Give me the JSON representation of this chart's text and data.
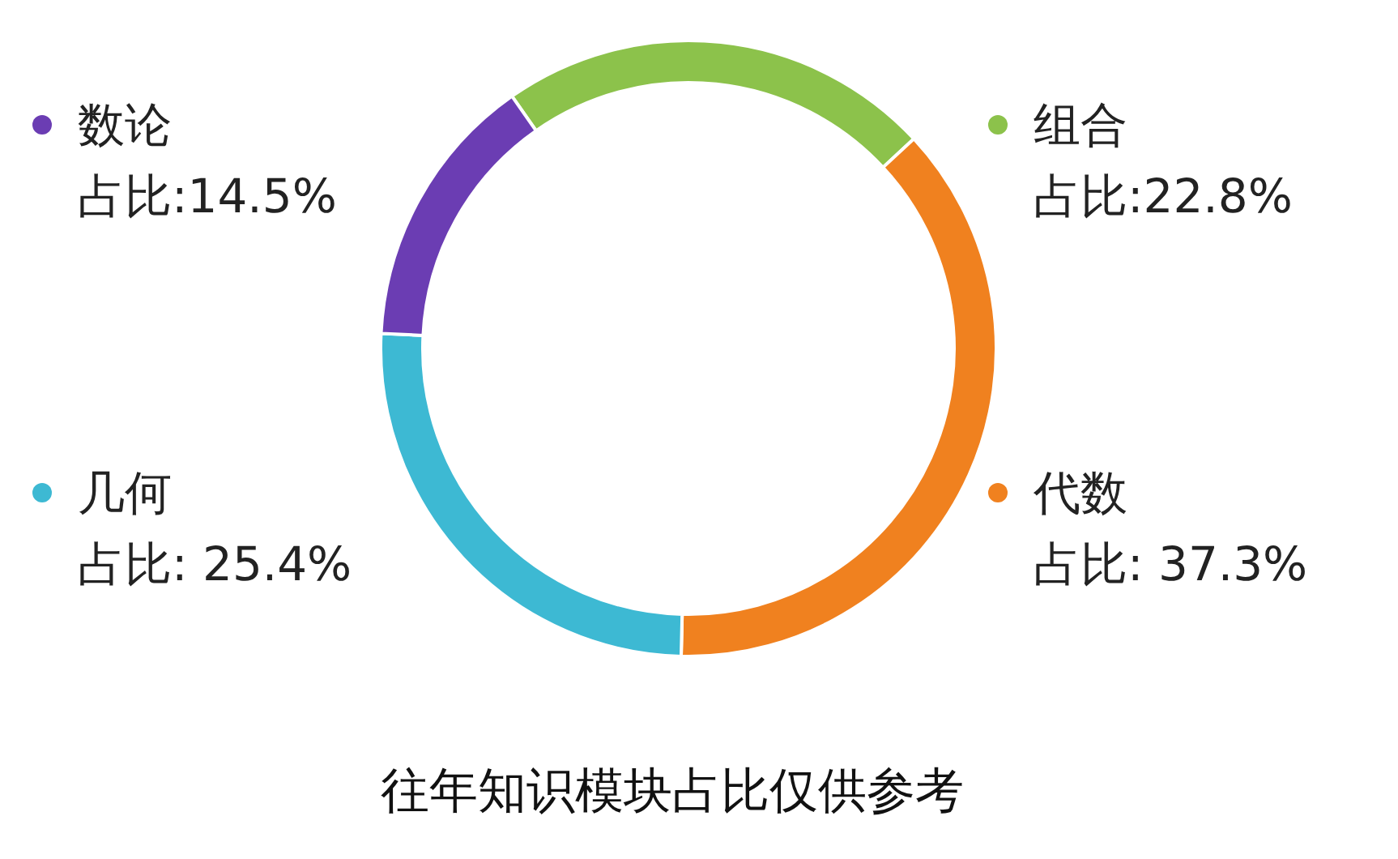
{
  "chart_data": {
    "type": "donut",
    "title": "往年知识模块占比仅供参考",
    "categories": [
      "组合",
      "代数",
      "几何",
      "数论"
    ],
    "values": [
      22.8,
      37.3,
      25.4,
      14.5
    ],
    "colors": [
      "#8cc24b",
      "#f0811f",
      "#3db9d3",
      "#6b3db3"
    ],
    "value_labels": [
      "占比:22.8%",
      "占比: 37.3%",
      "占比: 25.4%",
      "占比:14.5%"
    ],
    "legend": "left"
  }
}
